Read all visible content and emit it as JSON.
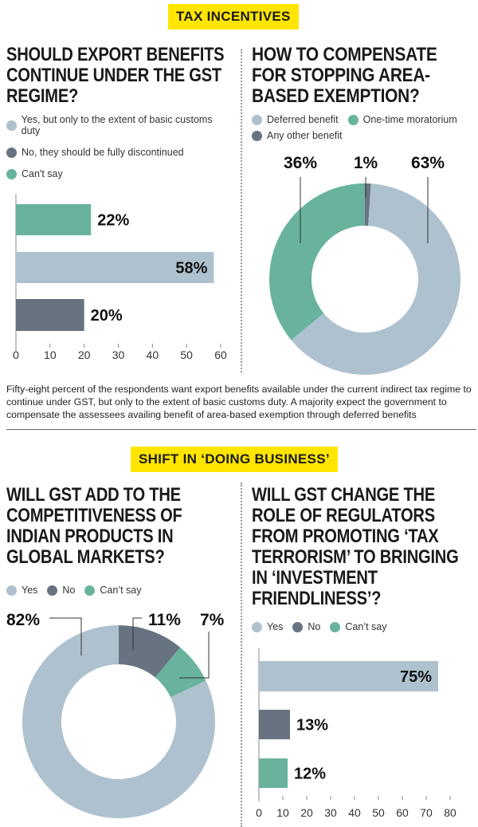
{
  "colors": {
    "light": "#adc1ce",
    "dark": "#687382",
    "teal": "#69b39e",
    "banner": "#ffe500"
  },
  "section1": {
    "banner": "TAX INCENTIVES"
  },
  "section2": {
    "banner": "SHIFT IN ‘DOING BUSINESS’"
  },
  "note": "Fifty-eight percent of the respondents want export benefits available under the current indirect tax regime to continue under GST, but only to the extent of basic customs duty. A majority expect the government to compensate the assessees availing benefit of area-based exemption through deferred benefits",
  "chart_data": [
    {
      "type": "bar",
      "orientation": "horizontal",
      "title": "SHOULD EXPORT BENEFITS CONTINUE UNDER THE GST REGIME?",
      "legend": [
        {
          "label": "Yes, but only to the extent of basic customs duty",
          "color": "light"
        },
        {
          "label": "No, they should be fully discontinued",
          "color": "dark"
        },
        {
          "label": "Can't say",
          "color": "teal"
        }
      ],
      "categories": [
        "Can't say",
        "Yes, but only to the extent of basic customs duty",
        "No, they should be fully discontinued"
      ],
      "values": [
        22,
        58,
        20
      ],
      "colors": [
        "teal",
        "light",
        "dark"
      ],
      "labels": [
        "22%",
        "58%",
        "20%"
      ],
      "xlim": [
        0,
        60
      ],
      "ticks": [
        "0",
        "10",
        "20",
        "30",
        "40",
        "50",
        "60"
      ]
    },
    {
      "type": "pie",
      "donut": true,
      "title": "HOW TO COMPENSATE FOR STOPPING AREA-BASED EXEMPTION?",
      "legend": [
        {
          "label": "Deferred benefit",
          "color": "light"
        },
        {
          "label": "One-time moratorium",
          "color": "teal"
        },
        {
          "label": "Any other benefit",
          "color": "dark"
        }
      ],
      "slices": [
        {
          "label": "Any other benefit",
          "value": 1,
          "text": "1%",
          "color": "dark"
        },
        {
          "label": "Deferred benefit",
          "value": 63,
          "text": "63%",
          "color": "light"
        },
        {
          "label": "One-time moratorium",
          "value": 36,
          "text": "36%",
          "color": "teal"
        }
      ]
    },
    {
      "type": "pie",
      "donut": true,
      "title": "WILL GST ADD TO THE COMPETITIVENESS OF INDIAN PRODUCTS IN GLOBAL MARKETS?",
      "legend": [
        {
          "label": "Yes",
          "color": "light"
        },
        {
          "label": "No",
          "color": "dark"
        },
        {
          "label": "Can’t say",
          "color": "teal"
        }
      ],
      "slices": [
        {
          "label": "No",
          "value": 11,
          "text": "11%",
          "color": "dark"
        },
        {
          "label": "Can’t say",
          "value": 7,
          "text": "7%",
          "color": "teal"
        },
        {
          "label": "Yes",
          "value": 82,
          "text": "82%",
          "color": "light"
        }
      ]
    },
    {
      "type": "bar",
      "orientation": "horizontal",
      "title": "WILL GST CHANGE THE ROLE OF REGULATORS FROM PROMOTING ‘TAX TERRORISM’ TO BRINGING IN ‘INVESTMENT FRIENDLINESS’?",
      "legend": [
        {
          "label": "Yes",
          "color": "light"
        },
        {
          "label": "No",
          "color": "dark"
        },
        {
          "label": "Can’t say",
          "color": "teal"
        }
      ],
      "categories": [
        "Yes",
        "No",
        "Can’t say"
      ],
      "values": [
        75,
        13,
        12
      ],
      "colors": [
        "light",
        "dark",
        "teal"
      ],
      "labels": [
        "75%",
        "13%",
        "12%"
      ],
      "xlim": [
        0,
        80
      ],
      "ticks": [
        "0",
        "10",
        "20",
        "30",
        "40",
        "50",
        "60",
        "70",
        "80"
      ]
    }
  ]
}
